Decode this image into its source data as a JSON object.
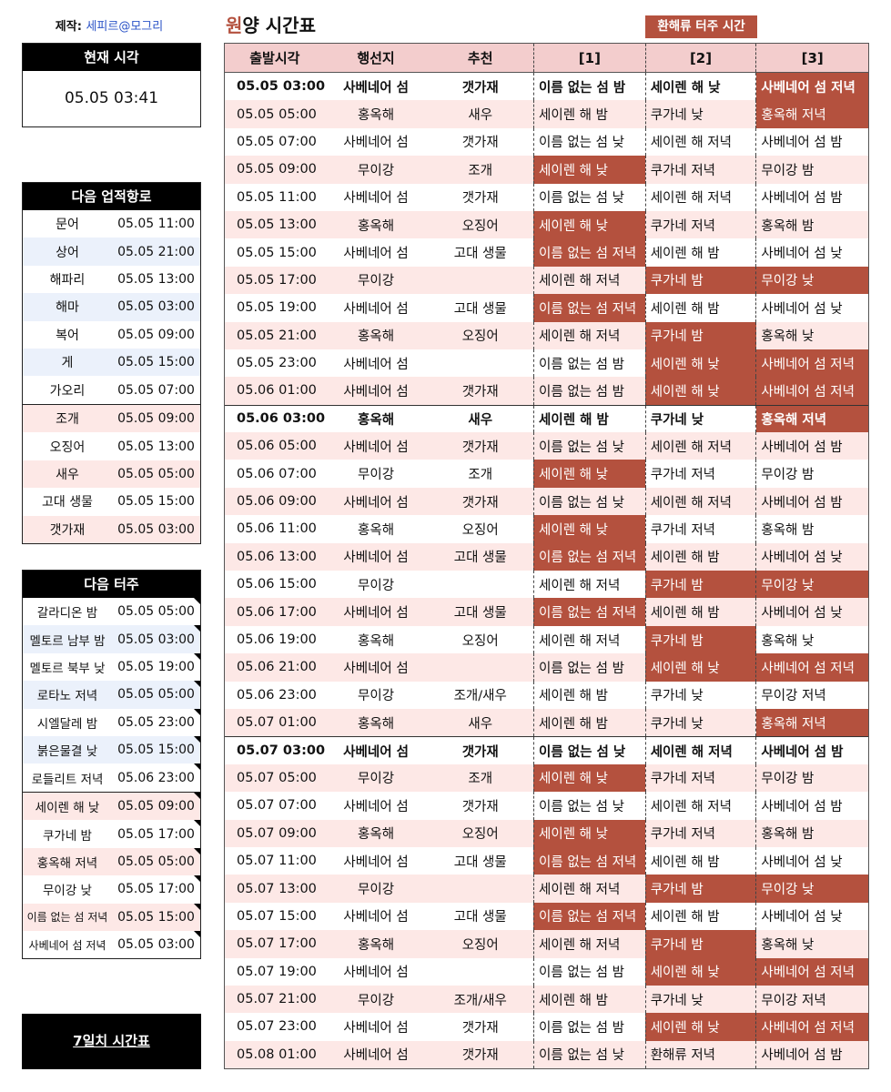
{
  "credit": {
    "label": "제작:",
    "author": "세피르@모그리"
  },
  "now": {
    "header": "현재 시각",
    "value": "05.05 03:41"
  },
  "achievement": {
    "header": "다음 업적항로",
    "group1": [
      {
        "name": "문어",
        "time": "05.05 11:00"
      },
      {
        "name": "상어",
        "time": "05.05 21:00"
      },
      {
        "name": "해파리",
        "time": "05.05 13:00"
      },
      {
        "name": "해마",
        "time": "05.05 03:00"
      },
      {
        "name": "복어",
        "time": "05.05 09:00"
      },
      {
        "name": "게",
        "time": "05.05 15:00"
      },
      {
        "name": "가오리",
        "time": "05.05 07:00"
      }
    ],
    "group2": [
      {
        "name": "조개",
        "time": "05.05 09:00"
      },
      {
        "name": "오징어",
        "time": "05.05 13:00"
      },
      {
        "name": "새우",
        "time": "05.05 05:00"
      },
      {
        "name": "고대 생물",
        "time": "05.05 15:00"
      },
      {
        "name": "갯가재",
        "time": "05.05 03:00"
      }
    ]
  },
  "ferry": {
    "header": "다음 터주",
    "group1": [
      {
        "name": "갈라디온 밤",
        "time": "05.05 05:00"
      },
      {
        "name": "멜토르 남부 밤",
        "time": "05.05 03:00"
      },
      {
        "name": "멜토르 북부 낮",
        "time": "05.05 19:00"
      },
      {
        "name": "로타노 저녁",
        "time": "05.05 05:00"
      },
      {
        "name": "시엘달레 밤",
        "time": "05.05 23:00"
      },
      {
        "name": "붉은물결 낮",
        "time": "05.05 15:00"
      },
      {
        "name": "로들리트 저녁",
        "time": "05.06 23:00"
      }
    ],
    "group2": [
      {
        "name": "세이렌 해 낮",
        "time": "05.05 09:00"
      },
      {
        "name": "쿠가네 밤",
        "time": "05.05 17:00"
      },
      {
        "name": "홍옥해 저녁",
        "time": "05.05 05:00"
      },
      {
        "name": "무이강 낮",
        "time": "05.05 17:00"
      },
      {
        "name": "이름 없는 섬 저녁",
        "time": "05.05 15:00"
      },
      {
        "name": "사베네어 섬 저녁",
        "time": "05.05 03:00"
      }
    ]
  },
  "week_button": "7일치 시간표",
  "title": {
    "first": "원",
    "rest": "양 시간표"
  },
  "legend_label": "환해류 터주 시간",
  "table": {
    "headers": [
      "출발시각",
      "행선지",
      "추천",
      "[1]",
      "[2]",
      "[3]"
    ],
    "rows": [
      [
        "05.05 03:00",
        "사베네어 섬",
        "갯가재",
        "이름 없는 섬 밤",
        "세이렌 해 낮",
        "사베네어 섬 저녁"
      ],
      [
        "05.05 05:00",
        "홍옥해",
        "새우",
        "세이렌 해 밤",
        "쿠가네 낮",
        "홍옥해 저녁"
      ],
      [
        "05.05 07:00",
        "사베네어 섬",
        "갯가재",
        "이름 없는 섬 낮",
        "세이렌 해 저녁",
        "사베네어 섬 밤"
      ],
      [
        "05.05 09:00",
        "무이강",
        "조개",
        "세이렌 해 낮",
        "쿠가네 저녁",
        "무이강 밤"
      ],
      [
        "05.05 11:00",
        "사베네어 섬",
        "갯가재",
        "이름 없는 섬 낮",
        "세이렌 해 저녁",
        "사베네어 섬 밤"
      ],
      [
        "05.05 13:00",
        "홍옥해",
        "오징어",
        "세이렌 해 낮",
        "쿠가네 저녁",
        "홍옥해 밤"
      ],
      [
        "05.05 15:00",
        "사베네어 섬",
        "고대 생물",
        "이름 없는 섬 저녁",
        "세이렌 해 밤",
        "사베네어 섬 낮"
      ],
      [
        "05.05 17:00",
        "무이강",
        "",
        "세이렌 해 저녁",
        "쿠가네 밤",
        "무이강 낮"
      ],
      [
        "05.05 19:00",
        "사베네어 섬",
        "고대 생물",
        "이름 없는 섬 저녁",
        "세이렌 해 밤",
        "사베네어 섬 낮"
      ],
      [
        "05.05 21:00",
        "홍옥해",
        "오징어",
        "세이렌 해 저녁",
        "쿠가네 밤",
        "홍옥해 낮"
      ],
      [
        "05.05 23:00",
        "사베네어 섬",
        "",
        "이름 없는 섬 밤",
        "세이렌 해 낮",
        "사베네어 섬 저녁"
      ],
      [
        "05.06 01:00",
        "사베네어 섬",
        "갯가재",
        "이름 없는 섬 밤",
        "세이렌 해 낮",
        "사베네어 섬 저녁"
      ],
      [
        "05.06 03:00",
        "홍옥해",
        "새우",
        "세이렌 해 밤",
        "쿠가네 낮",
        "홍옥해 저녁"
      ],
      [
        "05.06 05:00",
        "사베네어 섬",
        "갯가재",
        "이름 없는 섬 낮",
        "세이렌 해 저녁",
        "사베네어 섬 밤"
      ],
      [
        "05.06 07:00",
        "무이강",
        "조개",
        "세이렌 해 낮",
        "쿠가네 저녁",
        "무이강 밤"
      ],
      [
        "05.06 09:00",
        "사베네어 섬",
        "갯가재",
        "이름 없는 섬 낮",
        "세이렌 해 저녁",
        "사베네어 섬 밤"
      ],
      [
        "05.06 11:00",
        "홍옥해",
        "오징어",
        "세이렌 해 낮",
        "쿠가네 저녁",
        "홍옥해 밤"
      ],
      [
        "05.06 13:00",
        "사베네어 섬",
        "고대 생물",
        "이름 없는 섬 저녁",
        "세이렌 해 밤",
        "사베네어 섬 낮"
      ],
      [
        "05.06 15:00",
        "무이강",
        "",
        "세이렌 해 저녁",
        "쿠가네 밤",
        "무이강 낮"
      ],
      [
        "05.06 17:00",
        "사베네어 섬",
        "고대 생물",
        "이름 없는 섬 저녁",
        "세이렌 해 밤",
        "사베네어 섬 낮"
      ],
      [
        "05.06 19:00",
        "홍옥해",
        "오징어",
        "세이렌 해 저녁",
        "쿠가네 밤",
        "홍옥해 낮"
      ],
      [
        "05.06 21:00",
        "사베네어 섬",
        "",
        "이름 없는 섬 밤",
        "세이렌 해 낮",
        "사베네어 섬 저녁"
      ],
      [
        "05.06 23:00",
        "무이강",
        "조개/새우",
        "세이렌 해 밤",
        "쿠가네 낮",
        "무이강 저녁"
      ],
      [
        "05.07 01:00",
        "홍옥해",
        "새우",
        "세이렌 해 밤",
        "쿠가네 낮",
        "홍옥해 저녁"
      ],
      [
        "05.07 03:00",
        "사베네어 섬",
        "갯가재",
        "이름 없는 섬 낮",
        "세이렌 해 저녁",
        "사베네어 섬 밤"
      ],
      [
        "05.07 05:00",
        "무이강",
        "조개",
        "세이렌 해 낮",
        "쿠가네 저녁",
        "무이강 밤"
      ],
      [
        "05.07 07:00",
        "사베네어 섬",
        "갯가재",
        "이름 없는 섬 낮",
        "세이렌 해 저녁",
        "사베네어 섬 밤"
      ],
      [
        "05.07 09:00",
        "홍옥해",
        "오징어",
        "세이렌 해 낮",
        "쿠가네 저녁",
        "홍옥해 밤"
      ],
      [
        "05.07 11:00",
        "사베네어 섬",
        "고대 생물",
        "이름 없는 섬 저녁",
        "세이렌 해 밤",
        "사베네어 섬 낮"
      ],
      [
        "05.07 13:00",
        "무이강",
        "",
        "세이렌 해 저녁",
        "쿠가네 밤",
        "무이강 낮"
      ],
      [
        "05.07 15:00",
        "사베네어 섬",
        "고대 생물",
        "이름 없는 섬 저녁",
        "세이렌 해 밤",
        "사베네어 섬 낮"
      ],
      [
        "05.07 17:00",
        "홍옥해",
        "오징어",
        "세이렌 해 저녁",
        "쿠가네 밤",
        "홍옥해 낮"
      ],
      [
        "05.07 19:00",
        "사베네어 섬",
        "",
        "이름 없는 섬 밤",
        "세이렌 해 낮",
        "사베네어 섬 저녁"
      ],
      [
        "05.07 21:00",
        "무이강",
        "조개/새우",
        "세이렌 해 밤",
        "쿠가네 낮",
        "무이강 저녁"
      ],
      [
        "05.07 23:00",
        "사베네어 섬",
        "갯가재",
        "이름 없는 섬 밤",
        "세이렌 해 낮",
        "사베네어 섬 저녁"
      ],
      [
        "05.08 01:00",
        "사베네어 섬",
        "갯가재",
        "이름 없는 섬 낮",
        "환해류 저녁",
        "사베네어 섬 밤"
      ]
    ],
    "highlight_cols": [
      [
        5
      ],
      [
        5
      ],
      [],
      [
        3
      ],
      [],
      [
        3
      ],
      [
        3
      ],
      [
        4,
        5
      ],
      [
        3
      ],
      [
        4
      ],
      [
        4,
        5
      ],
      [
        4,
        5
      ],
      [
        5
      ],
      [],
      [
        3
      ],
      [],
      [
        3
      ],
      [
        3
      ],
      [
        4,
        5
      ],
      [
        3
      ],
      [
        4
      ],
      [
        4,
        5
      ],
      [],
      [
        5
      ],
      [],
      [
        3
      ],
      [],
      [
        3
      ],
      [
        3
      ],
      [
        4,
        5
      ],
      [
        3
      ],
      [
        4
      ],
      [
        4,
        5
      ],
      [],
      [
        4,
        5
      ],
      []
    ],
    "bold_rows": [
      0,
      12,
      24
    ],
    "daystart_rows": [
      12,
      24
    ]
  },
  "colors": {
    "accent": "#b4513e",
    "header_bg": "#f3cdcd",
    "row_pink": "#fde8e6",
    "row_blue": "#ebf1fb",
    "link": "#2b53c7"
  }
}
